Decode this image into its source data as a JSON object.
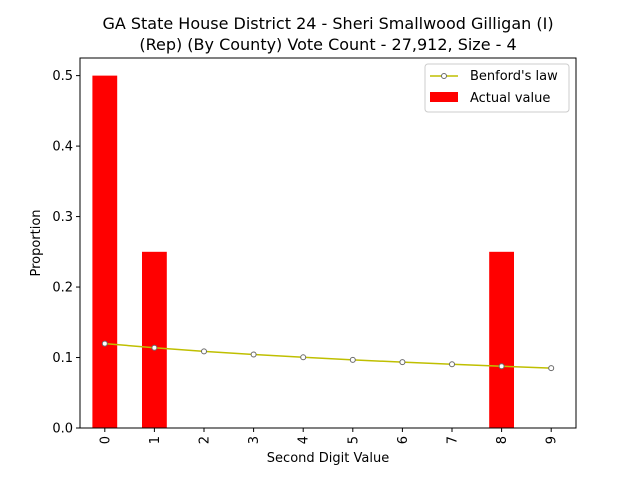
{
  "chart_data": {
    "type": "bar",
    "title_line1": "GA State House District 24 - Sheri Smallwood Gilligan (I)",
    "title_line2": "(Rep) (By County) Vote Count - 27,912, Size - 4",
    "xlabel": "Second Digit Value",
    "ylabel": "Proportion",
    "categories": [
      "0",
      "1",
      "2",
      "3",
      "4",
      "5",
      "6",
      "7",
      "8",
      "9"
    ],
    "ylim": [
      0,
      0.525
    ],
    "yticks": [
      "0.0",
      "0.1",
      "0.2",
      "0.3",
      "0.4",
      "0.5"
    ],
    "series": [
      {
        "name": "Actual value",
        "kind": "bar",
        "color": "#ff0000",
        "values": [
          0.5,
          0.25,
          0,
          0,
          0,
          0,
          0,
          0,
          0.25,
          0
        ]
      },
      {
        "name": "Benford's law",
        "kind": "line",
        "color": "#bfbf00",
        "values": [
          0.1197,
          0.1139,
          0.1088,
          0.1043,
          0.1003,
          0.0967,
          0.0934,
          0.0904,
          0.0876,
          0.085
        ]
      }
    ],
    "legend_position": "top-right",
    "grid": false
  }
}
